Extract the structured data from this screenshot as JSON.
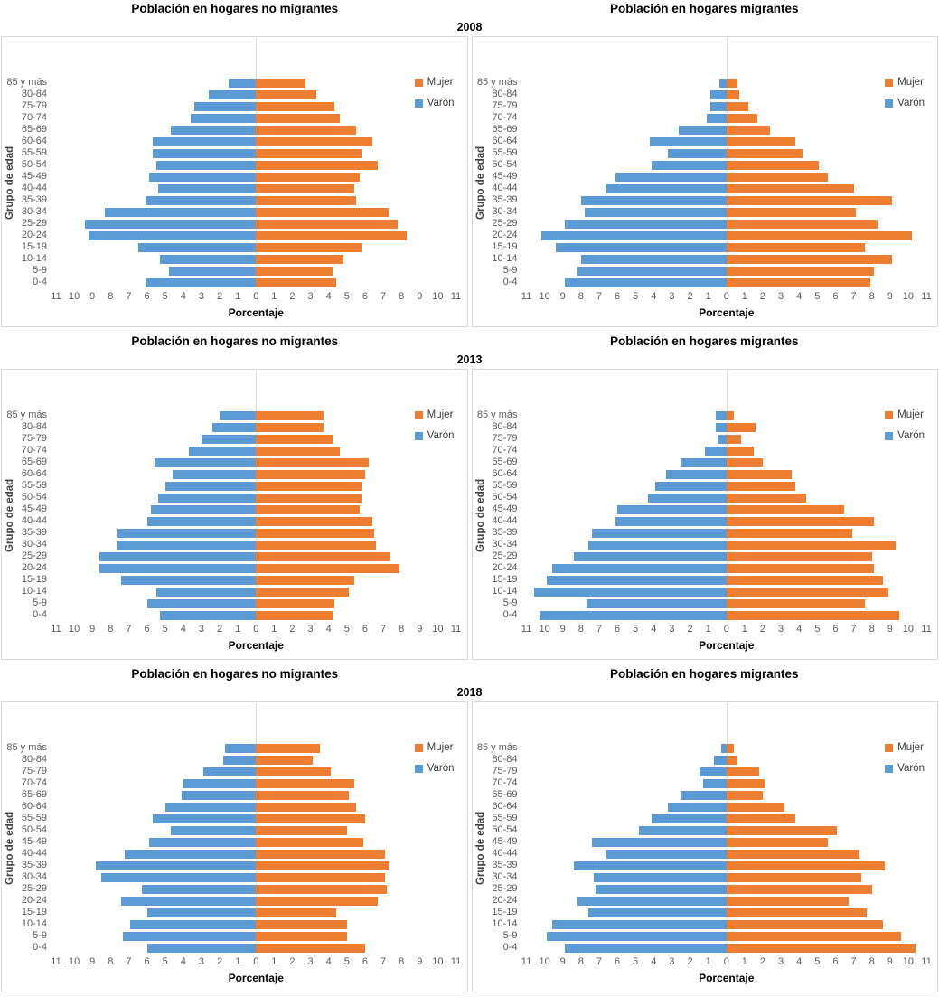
{
  "colors": {
    "mujer": "#ED7D31",
    "varon": "#5B9BD5",
    "axis_text": "#595959",
    "chart_border": "#D9D9D9",
    "zero_gridline": "#D9D9D9"
  },
  "chart_data": [
    {
      "type": "bar",
      "variant": "population-pyramid",
      "year": "2008",
      "panel": "no-migrantes",
      "title": "Población en hogares no migrantes",
      "xlabel": "Porcentaje",
      "ylabel": "Grupo de edad",
      "axis_max": 11,
      "xticks": [
        "11",
        "10",
        "9",
        "8",
        "7",
        "6",
        "5",
        "4",
        "3",
        "2",
        "1",
        "0",
        "1",
        "2",
        "3",
        "4",
        "5",
        "6",
        "7",
        "8",
        "9",
        "10",
        "11"
      ],
      "categories": [
        "85 y más",
        "80-84",
        "75-79",
        "70-74",
        "65-69",
        "60-64",
        "55-59",
        "50-54",
        "45-49",
        "40-44",
        "35-39",
        "30-34",
        "25-29",
        "20-24",
        "15-19",
        "10-14",
        "5-9",
        "0-4"
      ],
      "legend": [
        {
          "label": "Mujer",
          "color": "#ED7D31"
        },
        {
          "label": "Varón",
          "color": "#5B9BD5"
        }
      ],
      "series": [
        {
          "name": "Varón",
          "side": "left",
          "color": "#5B9BD5",
          "values": [
            1.5,
            2.6,
            3.4,
            3.6,
            4.7,
            5.7,
            5.7,
            5.5,
            5.9,
            5.4,
            6.1,
            8.3,
            9.4,
            9.2,
            6.5,
            5.3,
            4.8,
            6.1
          ]
        },
        {
          "name": "Mujer",
          "side": "right",
          "color": "#ED7D31",
          "values": [
            2.7,
            3.3,
            4.3,
            4.6,
            5.5,
            6.4,
            5.8,
            6.7,
            5.7,
            5.4,
            5.5,
            7.3,
            7.8,
            8.3,
            5.8,
            4.8,
            4.2,
            4.4
          ]
        }
      ]
    },
    {
      "type": "bar",
      "variant": "population-pyramid",
      "year": "2008",
      "panel": "migrantes",
      "title": "Población en hogares migrantes",
      "xlabel": "Porcentaje",
      "ylabel": "Grupo de edad",
      "axis_max": 11,
      "xticks": [
        "11",
        "10",
        "9",
        "8",
        "7",
        "6",
        "5",
        "4",
        "3",
        "2",
        "1",
        "0",
        "1",
        "2",
        "3",
        "4",
        "5",
        "6",
        "7",
        "8",
        "9",
        "10",
        "11"
      ],
      "categories": [
        "85 y más",
        "80-84",
        "75-79",
        "70-74",
        "65-69",
        "60-64",
        "55-59",
        "50-54",
        "45-49",
        "40-44",
        "35-39",
        "30-34",
        "25-29",
        "20-24",
        "15-19",
        "10-14",
        "5-9",
        "0-4"
      ],
      "legend": [
        {
          "label": "Mujer",
          "color": "#ED7D31"
        },
        {
          "label": "Varón",
          "color": "#5B9BD5"
        }
      ],
      "series": [
        {
          "name": "Varón",
          "side": "left",
          "color": "#5B9BD5",
          "values": [
            0.4,
            0.9,
            0.9,
            1.1,
            2.6,
            4.2,
            3.2,
            4.1,
            6.1,
            6.6,
            8.0,
            7.8,
            8.9,
            10.2,
            9.4,
            8.0,
            8.2,
            8.9
          ]
        },
        {
          "name": "Mujer",
          "side": "right",
          "color": "#ED7D31",
          "values": [
            0.6,
            0.7,
            1.2,
            1.7,
            2.4,
            3.8,
            4.2,
            5.1,
            5.6,
            7.0,
            9.1,
            7.1,
            8.3,
            10.2,
            7.6,
            9.1,
            8.1,
            7.9
          ]
        }
      ]
    },
    {
      "type": "bar",
      "variant": "population-pyramid",
      "year": "2013",
      "panel": "no-migrantes",
      "title": "Población en hogares no migrantes",
      "xlabel": "Porcentaje",
      "ylabel": "Grupo de edad",
      "axis_max": 11,
      "xticks": [
        "11",
        "10",
        "9",
        "8",
        "7",
        "6",
        "5",
        "4",
        "3",
        "2",
        "1",
        "0",
        "1",
        "2",
        "3",
        "4",
        "5",
        "6",
        "7",
        "8",
        "9",
        "10",
        "11"
      ],
      "categories": [
        "85 y más",
        "80-84",
        "75-79",
        "70-74",
        "65-69",
        "60-64",
        "55-59",
        "50-54",
        "45-49",
        "40-44",
        "35-39",
        "30-34",
        "25-29",
        "20-24",
        "15-19",
        "10-14",
        "5-9",
        "0-4"
      ],
      "legend": [
        {
          "label": "Mujer",
          "color": "#ED7D31"
        },
        {
          "label": "Varón",
          "color": "#5B9BD5"
        }
      ],
      "series": [
        {
          "name": "Varón",
          "side": "left",
          "color": "#5B9BD5",
          "values": [
            2.0,
            2.4,
            3.0,
            3.7,
            5.6,
            4.6,
            5.0,
            5.4,
            5.8,
            6.0,
            7.6,
            7.6,
            8.6,
            8.6,
            7.4,
            5.5,
            6.0,
            5.3
          ]
        },
        {
          "name": "Mujer",
          "side": "right",
          "color": "#ED7D31",
          "values": [
            3.7,
            3.7,
            4.2,
            4.6,
            6.2,
            6.0,
            5.8,
            5.8,
            5.7,
            6.4,
            6.5,
            6.6,
            7.4,
            7.9,
            5.4,
            5.1,
            4.3,
            4.2
          ]
        }
      ]
    },
    {
      "type": "bar",
      "variant": "population-pyramid",
      "year": "2013",
      "panel": "migrantes",
      "title": "Población en hogares migrantes",
      "xlabel": "Porcentaje",
      "ylabel": "Grupo de edad",
      "axis_max": 11,
      "xticks": [
        "11",
        "10",
        "9",
        "8",
        "7",
        "6",
        "5",
        "4",
        "3",
        "2",
        "1",
        "0",
        "1",
        "2",
        "3",
        "4",
        "5",
        "6",
        "7",
        "8",
        "9",
        "10",
        "11"
      ],
      "categories": [
        "85 y más",
        "80-84",
        "75-79",
        "70-74",
        "65-69",
        "60-64",
        "55-59",
        "50-54",
        "45-49",
        "40-44",
        "35-39",
        "30-34",
        "25-29",
        "20-24",
        "15-19",
        "10-14",
        "5-9",
        "0-4"
      ],
      "legend": [
        {
          "label": "Mujer",
          "color": "#ED7D31"
        },
        {
          "label": "Varón",
          "color": "#5B9BD5"
        }
      ],
      "series": [
        {
          "name": "Varón",
          "side": "left",
          "color": "#5B9BD5",
          "values": [
            0.6,
            0.6,
            0.5,
            1.2,
            2.5,
            3.3,
            3.9,
            4.3,
            6.0,
            6.1,
            7.4,
            7.6,
            8.4,
            9.6,
            9.9,
            10.6,
            7.7,
            10.3
          ]
        },
        {
          "name": "Mujer",
          "side": "right",
          "color": "#ED7D31",
          "values": [
            0.4,
            1.6,
            0.8,
            1.5,
            2.0,
            3.6,
            3.8,
            4.4,
            6.5,
            8.1,
            6.9,
            9.3,
            8.0,
            8.1,
            8.6,
            8.9,
            7.6,
            9.5
          ]
        }
      ]
    },
    {
      "type": "bar",
      "variant": "population-pyramid",
      "year": "2018",
      "panel": "no-migrantes",
      "title": "Población en hogares no migrantes",
      "xlabel": "Porcentaje",
      "ylabel": "Grupo de edad",
      "axis_max": 11,
      "xticks": [
        "11",
        "10",
        "9",
        "8",
        "7",
        "6",
        "5",
        "4",
        "3",
        "2",
        "1",
        "0",
        "1",
        "2",
        "3",
        "4",
        "5",
        "6",
        "7",
        "8",
        "9",
        "10",
        "11"
      ],
      "categories": [
        "85 y más",
        "80-84",
        "75-79",
        "70-74",
        "65-69",
        "60-64",
        "55-59",
        "50-54",
        "45-49",
        "40-44",
        "35-39",
        "30-34",
        "25-29",
        "20-24",
        "15-19",
        "10-14",
        "5-9",
        "0-4"
      ],
      "legend": [
        {
          "label": "Mujer",
          "color": "#ED7D31"
        },
        {
          "label": "Varón",
          "color": "#5B9BD5"
        }
      ],
      "series": [
        {
          "name": "Varón",
          "side": "left",
          "color": "#5B9BD5",
          "values": [
            1.7,
            1.8,
            2.9,
            4.0,
            4.1,
            5.0,
            5.7,
            4.7,
            5.9,
            7.2,
            8.8,
            8.5,
            6.3,
            7.4,
            6.0,
            6.9,
            7.3,
            6.0
          ]
        },
        {
          "name": "Mujer",
          "side": "right",
          "color": "#ED7D31",
          "values": [
            3.5,
            3.1,
            4.1,
            5.4,
            5.1,
            5.5,
            6.0,
            5.0,
            5.9,
            7.1,
            7.3,
            7.1,
            7.2,
            6.7,
            4.4,
            5.0,
            5.0,
            6.0
          ]
        }
      ]
    },
    {
      "type": "bar",
      "variant": "population-pyramid",
      "year": "2018",
      "panel": "migrantes",
      "title": "Población en hogares migrantes",
      "xlabel": "Porcentaje",
      "ylabel": "Grupo de edad",
      "axis_max": 11,
      "xticks": [
        "11",
        "10",
        "9",
        "8",
        "7",
        "6",
        "5",
        "4",
        "3",
        "2",
        "1",
        "0",
        "1",
        "2",
        "3",
        "4",
        "5",
        "6",
        "7",
        "8",
        "9",
        "10",
        "11"
      ],
      "categories": [
        "85 y más",
        "80-84",
        "75-79",
        "70-74",
        "65-69",
        "60-64",
        "55-59",
        "50-54",
        "45-49",
        "40-44",
        "35-39",
        "30-34",
        "25-29",
        "20-24",
        "15-19",
        "10-14",
        "5-9",
        "0-4"
      ],
      "legend": [
        {
          "label": "Mujer",
          "color": "#ED7D31"
        },
        {
          "label": "Varón",
          "color": "#5B9BD5"
        }
      ],
      "series": [
        {
          "name": "Varón",
          "side": "left",
          "color": "#5B9BD5",
          "values": [
            0.3,
            0.7,
            1.5,
            1.3,
            2.5,
            3.2,
            4.1,
            4.8,
            7.4,
            6.6,
            8.4,
            7.3,
            7.2,
            8.2,
            7.6,
            9.6,
            9.9,
            8.9
          ]
        },
        {
          "name": "Mujer",
          "side": "right",
          "color": "#ED7D31",
          "values": [
            0.4,
            0.6,
            1.8,
            2.1,
            2.0,
            3.2,
            3.8,
            6.1,
            5.6,
            7.3,
            8.7,
            7.4,
            8.0,
            6.7,
            7.7,
            8.6,
            9.6,
            10.4
          ]
        }
      ]
    }
  ]
}
